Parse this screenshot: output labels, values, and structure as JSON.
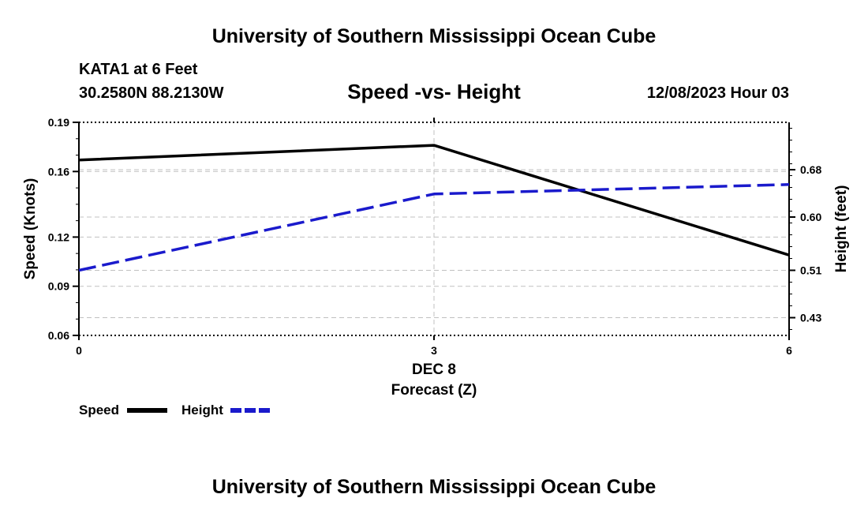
{
  "header": {
    "title": "University of Southern Mississippi Ocean Cube",
    "station": "KATA1 at 6 Feet",
    "coords": "30.2580N  88.2130W",
    "plot_title": "Speed -vs- Height",
    "datetime": "12/08/2023 Hour 03"
  },
  "footer": {
    "title": "University of Southern Mississippi Ocean Cube"
  },
  "legend": {
    "speed_label": "Speed",
    "height_label": "Height"
  },
  "colors": {
    "speed": "#000000",
    "height": "#1a1acc",
    "grid": "#c0c0c0"
  },
  "chart_data": {
    "type": "line",
    "title": "Speed -vs- Height",
    "xlabel": "Forecast (Z)",
    "xlabel_date": "DEC 8",
    "ylabel_left": "Speed (Knots)",
    "ylabel_right": "Height (feet)",
    "x": [
      0,
      3,
      6
    ],
    "x_ticks": [
      "0",
      "3",
      "6"
    ],
    "xlim": [
      0,
      6
    ],
    "left_ylim": [
      0.06,
      0.19
    ],
    "left_ticks": [
      "0.19",
      "0.16",
      "0.12",
      "0.09",
      "0.06"
    ],
    "left_tick_values": [
      0.19,
      0.16,
      0.12,
      0.09,
      0.06
    ],
    "right_ylim": [
      0.4,
      0.76
    ],
    "right_ticks": [
      "0.68",
      "0.60",
      "0.51",
      "0.43"
    ],
    "right_tick_values": [
      0.68,
      0.6,
      0.51,
      0.43
    ],
    "series": [
      {
        "name": "Speed",
        "axis": "left",
        "style": "solid",
        "values": [
          0.167,
          0.176,
          0.109
        ]
      },
      {
        "name": "Height",
        "axis": "right",
        "style": "dashed",
        "values": [
          0.51,
          0.639,
          0.655
        ]
      }
    ]
  }
}
